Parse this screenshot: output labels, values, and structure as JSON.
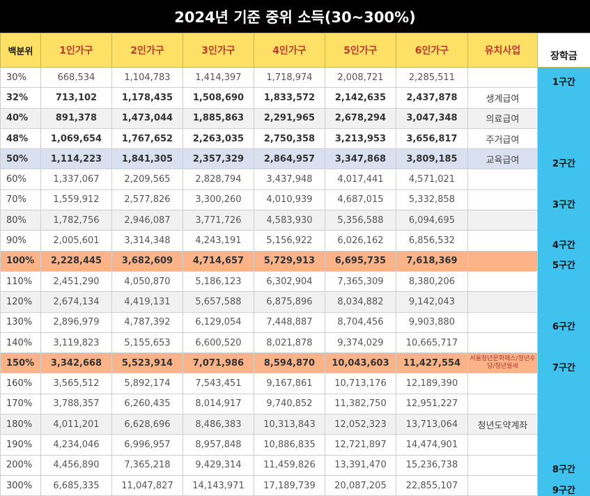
{
  "title": "2024년 기준 중위 소득(30~300%)",
  "headers": [
    "백분위",
    "1인가구",
    "2인가구",
    "3인가구",
    "4인가구",
    "5인가구",
    "6인가구",
    "유치사업",
    "장학금"
  ],
  "rows": [
    {
      "pct": "30%",
      "vals": [
        "668,534",
        "1,104,783",
        "1,414,397",
        "1,718,974",
        "2,008,721",
        "2,285,511"
      ],
      "program": "",
      "scholarship": "1구간",
      "style": ""
    },
    {
      "pct": "32%",
      "vals": [
        "713,102",
        "1,178,435",
        "1,508,690",
        "1,833,572",
        "2,142,635",
        "2,437,878"
      ],
      "program": "생계급여",
      "scholarship": "",
      "style": "bold"
    },
    {
      "pct": "40%",
      "vals": [
        "891,378",
        "1,473,044",
        "1,885,863",
        "2,291,965",
        "2,678,294",
        "3,047,348"
      ],
      "program": "의료급여",
      "scholarship": "",
      "style": "bold bg-gray"
    },
    {
      "pct": "48%",
      "vals": [
        "1,069,654",
        "1,767,652",
        "2,263,035",
        "2,750,358",
        "3,213,953",
        "3,656,817"
      ],
      "program": "주거급여",
      "scholarship": "",
      "style": "bold"
    },
    {
      "pct": "50%",
      "vals": [
        "1,114,223",
        "1,841,305",
        "2,357,329",
        "2,864,957",
        "3,347,868",
        "3,809,185"
      ],
      "program": "교육급여",
      "scholarship": "2구간",
      "style": "bold bg-blue"
    },
    {
      "pct": "60%",
      "vals": [
        "1,337,067",
        "2,209,565",
        "2,828,794",
        "3,437,948",
        "4,017,441",
        "4,571,021"
      ],
      "program": "",
      "scholarship": "",
      "style": ""
    },
    {
      "pct": "70%",
      "vals": [
        "1,559,912",
        "2,577,826",
        "3,300,260",
        "4,010,939",
        "4,687,015",
        "5,332,858"
      ],
      "program": "",
      "scholarship": "3구간",
      "style": ""
    },
    {
      "pct": "80%",
      "vals": [
        "1,782,756",
        "2,946,087",
        "3,771,726",
        "4,583,930",
        "5,356,588",
        "6,094,695"
      ],
      "program": "",
      "scholarship": "",
      "style": "bg-gray"
    },
    {
      "pct": "90%",
      "vals": [
        "2,005,601",
        "3,314,348",
        "4,243,191",
        "5,156,922",
        "6,026,162",
        "6,856,532"
      ],
      "program": "",
      "scholarship": "4구간",
      "style": ""
    },
    {
      "pct": "100%",
      "vals": [
        "2,228,445",
        "3,682,609",
        "4,714,657",
        "5,729,913",
        "6,695,735",
        "7,618,369"
      ],
      "program": "",
      "scholarship": "5구간",
      "style": "bold bg-orange"
    },
    {
      "pct": "110%",
      "vals": [
        "2,451,290",
        "4,050,870",
        "5,186,123",
        "6,302,904",
        "7,365,309",
        "8,380,206"
      ],
      "program": "",
      "scholarship": "",
      "style": ""
    },
    {
      "pct": "120%",
      "vals": [
        "2,674,134",
        "4,419,131",
        "5,657,588",
        "6,875,896",
        "8,034,882",
        "9,142,043"
      ],
      "program": "",
      "scholarship": "",
      "style": "bg-gray"
    },
    {
      "pct": "130%",
      "vals": [
        "2,896,979",
        "4,787,392",
        "6,129,054",
        "7,448,887",
        "8,704,456",
        "9,903,880"
      ],
      "program": "",
      "scholarship": "6구간",
      "style": ""
    },
    {
      "pct": "140%",
      "vals": [
        "3,119,823",
        "5,155,653",
        "6,600,520",
        "8,021,878",
        "9,374,029",
        "10,665,717"
      ],
      "program": "",
      "scholarship": "",
      "style": ""
    },
    {
      "pct": "150%",
      "vals": [
        "3,342,668",
        "5,523,914",
        "7,071,986",
        "8,594,870",
        "10,043,603",
        "11,427,554"
      ],
      "program": "서울청년문화패스/청년수당/청년월세",
      "scholarship": "7구간",
      "style": "bold bg-orange"
    },
    {
      "pct": "160%",
      "vals": [
        "3,565,512",
        "5,892,174",
        "7,543,451",
        "9,167,861",
        "10,713,176",
        "12,189,390"
      ],
      "program": "",
      "scholarship": "",
      "style": ""
    },
    {
      "pct": "170%",
      "vals": [
        "3,788,357",
        "6,260,435",
        "8,014,917",
        "9,740,852",
        "11,382,750",
        "12,951,227"
      ],
      "program": "",
      "scholarship": "",
      "style": ""
    },
    {
      "pct": "180%",
      "vals": [
        "4,011,201",
        "6,628,696",
        "8,486,383",
        "10,313,843",
        "12,052,323",
        "13,713,064"
      ],
      "program": "청년도약계좌",
      "scholarship": "",
      "style": "bg-gray"
    },
    {
      "pct": "190%",
      "vals": [
        "4,234,046",
        "6,996,957",
        "8,957,848",
        "10,886,835",
        "12,721,897",
        "14,474,901"
      ],
      "program": "",
      "scholarship": "",
      "style": ""
    },
    {
      "pct": "200%",
      "vals": [
        "4,456,890",
        "7,365,218",
        "9,429,314",
        "11,459,826",
        "13,391,470",
        "15,236,738"
      ],
      "program": "",
      "scholarship": "8구간",
      "style": ""
    },
    {
      "pct": "300%",
      "vals": [
        "6,685,335",
        "11,047,827",
        "14,143,971",
        "17,189,739",
        "20,087,205",
        "22,855,107"
      ],
      "program": "",
      "scholarship": "9구간",
      "style": ""
    }
  ]
}
